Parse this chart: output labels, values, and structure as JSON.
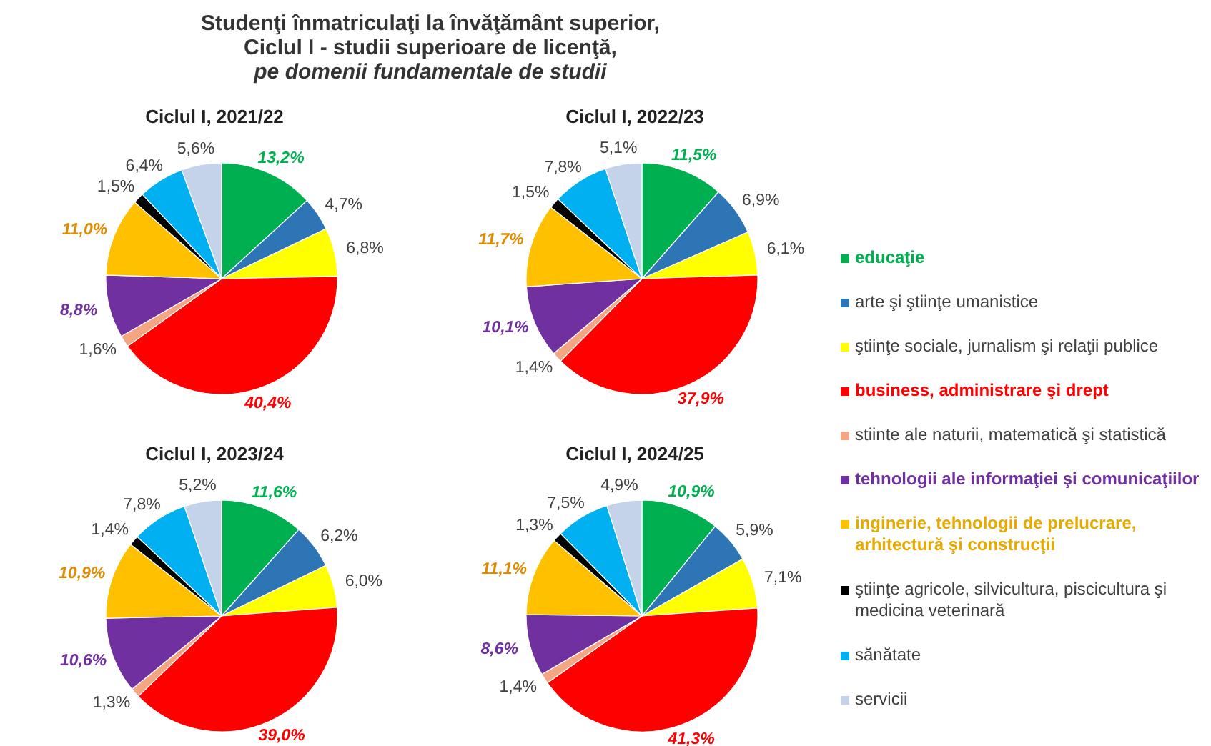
{
  "chart_data": {
    "type": "pie",
    "title": "Studenţi înmatriculaţi la învăţământ superior, Ciclul I - studii superioare de licenţă,",
    "subtitle": "pe domenii fundamentale de studii",
    "categories": [
      "educaţie",
      "arte şi ştiinţe umanistice",
      "ştiinţe sociale, jurnalism şi relaţii publice",
      "business, administrare şi drept",
      "stiinte ale naturii, matematică şi statistică",
      "tehnologii ale informaţiei şi comunicaţiilor",
      "inginerie, tehnologii de prelucrare, arhitectură şi construcţii",
      "ştiinţe agricole, silvicultura, piscicultura şi medicina veterinară",
      "sănătate",
      "servicii"
    ],
    "colors": [
      "#00b050",
      "#2e75b6",
      "#ffff00",
      "#ff0000",
      "#f4a582",
      "#7030a0",
      "#ffc000",
      "#000000",
      "#00b0f0",
      "#c5d3ea"
    ],
    "legend": "right",
    "series": [
      {
        "name": "Ciclul I, 2021/22",
        "values": [
          13.2,
          4.7,
          6.8,
          40.4,
          1.6,
          8.8,
          11.0,
          1.5,
          6.4,
          5.6
        ],
        "value_labels": [
          "13,2%",
          "4,7%",
          "6,8%",
          "40,4%",
          "1,6%",
          "8,8%",
          "11,0%",
          "1,5%",
          "6,4%",
          "5,6%"
        ]
      },
      {
        "name": "Ciclul I, 2022/23",
        "values": [
          11.5,
          6.9,
          6.1,
          37.9,
          1.4,
          10.1,
          11.7,
          1.5,
          7.8,
          5.1
        ],
        "value_labels": [
          "11,5%",
          "6,9%",
          "6,1%",
          "37,9%",
          "1,4%",
          "10,1%",
          "11,7%",
          "1,5%",
          "7,8%",
          "5,1%"
        ]
      },
      {
        "name": "Ciclul I, 2023/24",
        "values": [
          11.6,
          6.2,
          6.0,
          39.0,
          1.3,
          10.6,
          10.9,
          1.4,
          7.8,
          5.2
        ],
        "value_labels": [
          "11,6%",
          "6,2%",
          "6,0%",
          "39,0%",
          "1,3%",
          "10,6%",
          "10,9%",
          "1,4%",
          "7,8%",
          "5,2%"
        ]
      },
      {
        "name": "Ciclul I, 2024/25",
        "values": [
          10.9,
          5.9,
          7.1,
          41.3,
          1.4,
          8.6,
          11.1,
          1.3,
          7.5,
          4.9
        ],
        "value_labels": [
          "10,9%",
          "5,9%",
          "7,1%",
          "41,3%",
          "1,4%",
          "8,6%",
          "11,1%",
          "1,3%",
          "7,5%",
          "4,9%"
        ]
      }
    ]
  }
}
